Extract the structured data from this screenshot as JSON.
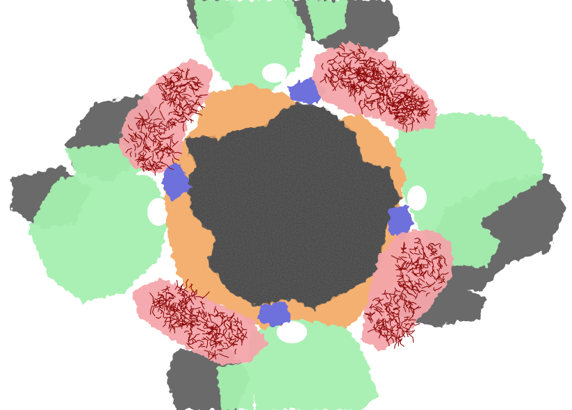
{
  "scene": {
    "background_color": "#ffffff",
    "colors": {
      "core_gray": "#5c5c5c",
      "outer_gray": "#6a6a6a",
      "peripheral_green": "#a6f0b0",
      "linker_orange": "#f4b070",
      "interface_blue": "#6e70dc",
      "shell_pink": "#f4a6aa",
      "wireframe_darkred": "#8c0a0a",
      "ligand_orange": "#c87010",
      "ligand_green": "#1a6a10"
    },
    "domains": [
      {
        "name": "central-core",
        "color": "core_gray"
      },
      {
        "name": "peripheral-subunits",
        "color": "peripheral_green"
      },
      {
        "name": "linker-regions",
        "color": "linker_orange"
      },
      {
        "name": "interface-patches",
        "color": "interface_blue"
      },
      {
        "name": "ligand-shells",
        "color": "shell_pink"
      },
      {
        "name": "wireframe-ligands",
        "color": "wireframe_darkred"
      }
    ]
  }
}
